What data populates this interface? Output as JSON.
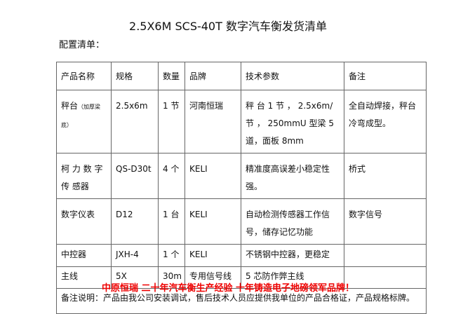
{
  "title": "2.5X6M SCS-40T 数字汽车衡发货清单",
  "subtitle": "配置清单：",
  "headers": [
    "产品名称",
    "规格",
    "数量",
    "品牌",
    "技术参数",
    "备注"
  ],
  "rows": [
    {
      "name": "秤台",
      "name_note": "（加厚梁底）",
      "spec": "2.5x6m",
      "qty": "1 节",
      "brand": "河南恒瑞",
      "tech": "秤 台 1 节 ， 2.5x6m/ 节 ， 250mmU 型梁 5 道，面板 8mm",
      "remark": "全自动焊接，秤台冷弯成型。"
    },
    {
      "name": "柯 力 数 字 传 感器",
      "name_note": "",
      "spec": "QS-D30t",
      "qty": "4 个",
      "brand": "KELI",
      "tech": "精准度高误差小稳定性强。",
      "remark": "桥式"
    },
    {
      "name": "数字仪表",
      "name_note": "",
      "spec": "D12",
      "qty": "1 台",
      "brand": "KELI",
      "tech": "自动检测传感器工作信号，储存记忆功能",
      "remark": "数字信号"
    },
    {
      "name": "中控器",
      "name_note": "",
      "spec": "JXH-4",
      "qty": "1 个",
      "brand": "KELI",
      "tech": "不锈钢中控器，更稳定",
      "remark": ""
    },
    {
      "name": "主线",
      "name_note": "",
      "spec": "5X",
      "qty": "30m",
      "brand": "专用信号线",
      "tech": "5 芯防作弊主线",
      "remark": ""
    }
  ],
  "note": "备注说明：产品由我公司安装调试，售后技术人员应提供我单位的产品合格证，产品规格标牌。",
  "footer": "中原恒瑞  二十年汽车衡生产经验  十年铸造电子地磅领军品牌！"
}
